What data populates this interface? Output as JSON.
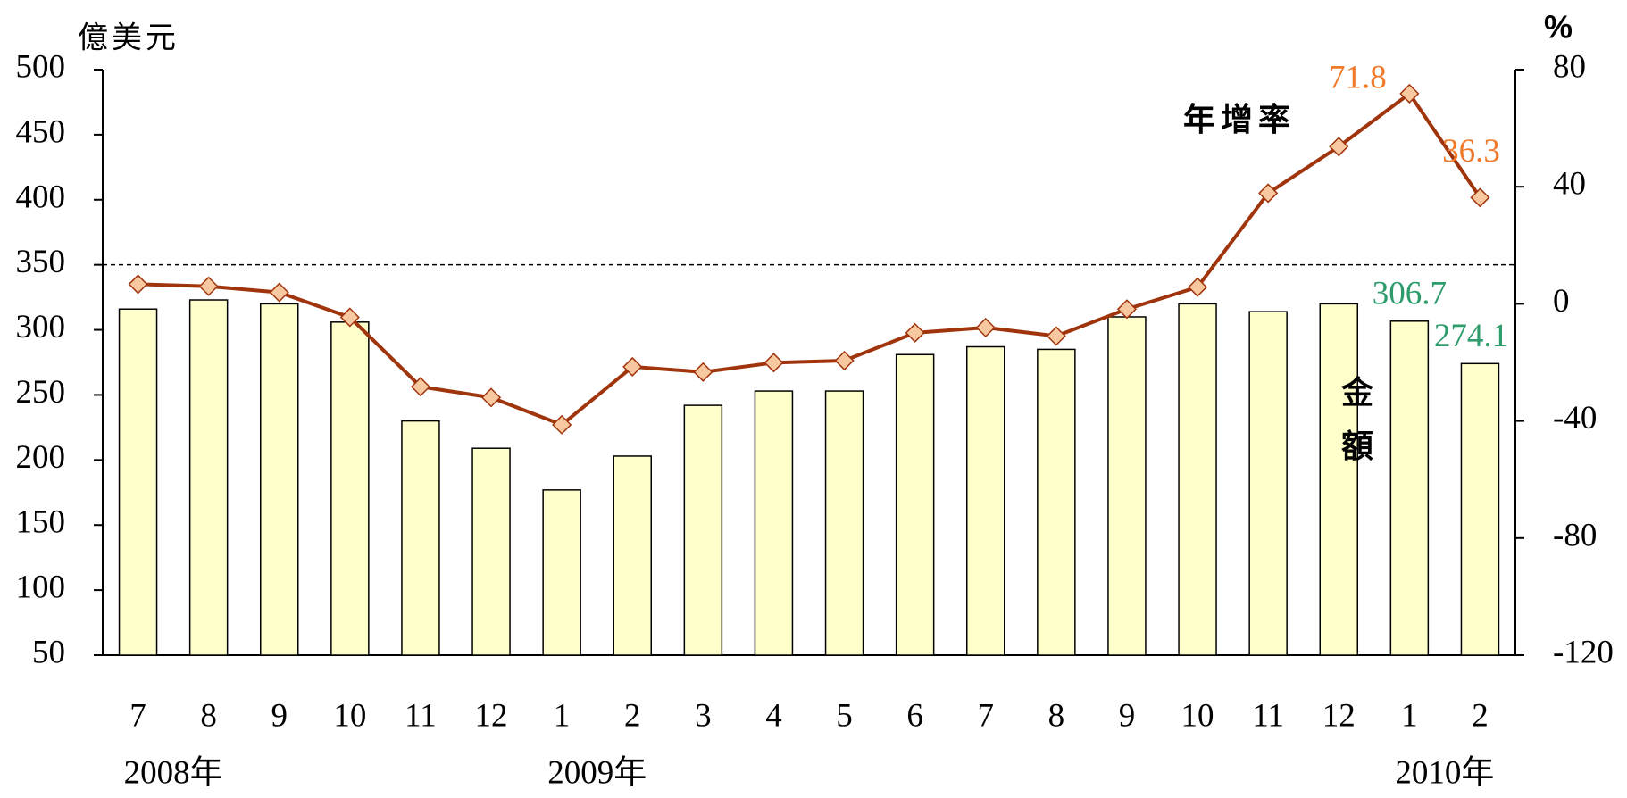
{
  "chart_data": {
    "type": "bar-line",
    "y_label": "億美元",
    "y2_label": "%",
    "annotations": [
      "年增率",
      "金額"
    ],
    "categories": [
      "7",
      "8",
      "9",
      "10",
      "11",
      "12",
      "1",
      "2",
      "3",
      "4",
      "5",
      "6",
      "7",
      "8",
      "9",
      "10",
      "11",
      "12",
      "1",
      "2"
    ],
    "years": [
      "2008年",
      null,
      null,
      null,
      null,
      null,
      "2009年",
      null,
      null,
      null,
      null,
      null,
      null,
      null,
      null,
      null,
      null,
      null,
      "2010年",
      null
    ],
    "series": [
      {
        "name": "金額",
        "type": "bar",
        "color": "#FFFFCC",
        "label_color": "#2E9B6B",
        "values": [
          316,
          323,
          320,
          306,
          230,
          209,
          177,
          203,
          242,
          253,
          253,
          281,
          287,
          285,
          310,
          320,
          314,
          320,
          306.7,
          274.1
        ]
      },
      {
        "name": "年增率",
        "type": "line",
        "axis": "y2",
        "color": "#A0340C",
        "marker_color": "#F8C8A0",
        "label_color": "#F07A2A",
        "values": [
          6.7,
          6,
          3.9,
          -4.6,
          -28.3,
          -32,
          -41.3,
          -21.5,
          -23.3,
          -20.1,
          -19.4,
          -9.9,
          -8.1,
          -11,
          -1.8,
          5.7,
          37.8,
          53.7,
          71.8,
          36.3
        ]
      }
    ],
    "ylim": [
      50,
      500
    ],
    "yticks": [
      50,
      100,
      150,
      200,
      250,
      300,
      350,
      400,
      450,
      500
    ],
    "y2lim": [
      -120,
      80
    ],
    "y2ticks": [
      -120,
      -80,
      -40,
      0,
      40,
      80
    ],
    "reference_line": 350
  }
}
